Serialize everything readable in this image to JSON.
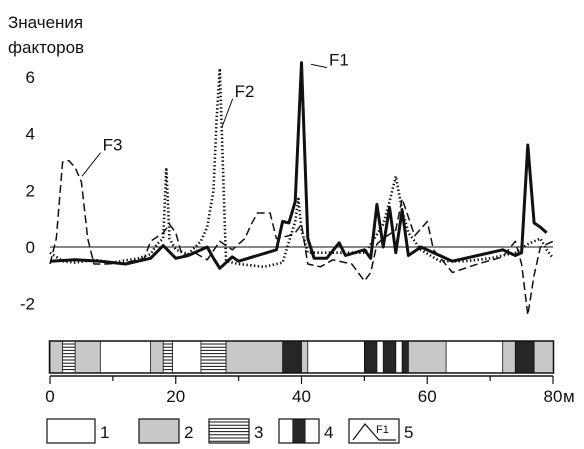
{
  "chart_data": {
    "type": "line",
    "ylabel": [
      "Значения",
      "факторов"
    ],
    "xunit": "м",
    "xlim": [
      0,
      80
    ],
    "ylim": [
      -3,
      6.6
    ],
    "x_ticks": [
      0,
      20,
      40,
      60,
      80
    ],
    "y_ticks": [
      6,
      4,
      2,
      0,
      -2
    ],
    "zero_line": true,
    "series": [
      {
        "name": "F1",
        "style": "solid",
        "points": [
          [
            0,
            -0.5
          ],
          [
            4,
            -0.45
          ],
          [
            8,
            -0.5
          ],
          [
            12,
            -0.6
          ],
          [
            16,
            -0.4
          ],
          [
            18,
            0.05
          ],
          [
            20,
            -0.4
          ],
          [
            22,
            -0.3
          ],
          [
            25,
            0.0
          ],
          [
            26,
            -0.4
          ],
          [
            27,
            -0.75
          ],
          [
            29,
            -0.35
          ],
          [
            30,
            -0.5
          ],
          [
            33,
            -0.3
          ],
          [
            36,
            -0.1
          ],
          [
            37,
            0.9
          ],
          [
            38,
            0.85
          ],
          [
            39,
            1.6
          ],
          [
            40,
            6.5
          ],
          [
            41,
            0.3
          ],
          [
            42,
            -0.4
          ],
          [
            44,
            -0.4
          ],
          [
            46,
            0.15
          ],
          [
            47,
            -0.3
          ],
          [
            50,
            -0.1
          ],
          [
            51,
            -0.4
          ],
          [
            52,
            1.5
          ],
          [
            53,
            0.0
          ],
          [
            54,
            1.4
          ],
          [
            55,
            -0.2
          ],
          [
            56,
            1.3
          ],
          [
            57,
            -0.3
          ],
          [
            59,
            0.0
          ],
          [
            61,
            -0.2
          ],
          [
            64,
            -0.5
          ],
          [
            68,
            -0.3
          ],
          [
            72,
            -0.1
          ],
          [
            74,
            -0.3
          ],
          [
            75,
            -0.2
          ],
          [
            76,
            3.6
          ],
          [
            77,
            0.85
          ],
          [
            78,
            0.7
          ],
          [
            79,
            0.5
          ]
        ]
      },
      {
        "name": "F2",
        "style": "dotted",
        "points": [
          [
            0,
            -0.2
          ],
          [
            2,
            -0.5
          ],
          [
            4,
            -0.55
          ],
          [
            7,
            -0.45
          ],
          [
            10,
            -0.55
          ],
          [
            14,
            -0.4
          ],
          [
            16,
            -0.25
          ],
          [
            17,
            0.1
          ],
          [
            18,
            0.3
          ],
          [
            18.5,
            2.8
          ],
          [
            19,
            0.3
          ],
          [
            20,
            -0.1
          ],
          [
            22,
            -0.25
          ],
          [
            24,
            0.2
          ],
          [
            25,
            0.7
          ],
          [
            26,
            2.0
          ],
          [
            26.5,
            4.5
          ],
          [
            27,
            6.3
          ],
          [
            28,
            -0.5
          ],
          [
            30,
            -0.6
          ],
          [
            34,
            -0.7
          ],
          [
            37,
            -0.55
          ],
          [
            39,
            0.9
          ],
          [
            39.5,
            1.7
          ],
          [
            40,
            0.6
          ],
          [
            41,
            -0.2
          ],
          [
            44,
            -0.2
          ],
          [
            50,
            -0.2
          ],
          [
            51,
            0.1
          ],
          [
            53,
            0.8
          ],
          [
            54,
            1.6
          ],
          [
            55,
            2.5
          ],
          [
            56,
            1.3
          ],
          [
            57,
            0.5
          ],
          [
            59,
            -0.1
          ],
          [
            62,
            -0.5
          ],
          [
            66,
            -0.5
          ],
          [
            70,
            -0.4
          ],
          [
            74,
            -0.2
          ],
          [
            76,
            0.1
          ],
          [
            78,
            0.3
          ],
          [
            79,
            -0.1
          ],
          [
            80,
            -0.4
          ]
        ]
      },
      {
        "name": "F3",
        "style": "dashed",
        "points": [
          [
            0,
            -0.6
          ],
          [
            1,
            0.3
          ],
          [
            2,
            3.0
          ],
          [
            3,
            3.05
          ],
          [
            4,
            2.8
          ],
          [
            5,
            2.3
          ],
          [
            6,
            0.3
          ],
          [
            7,
            -0.6
          ],
          [
            9,
            -0.6
          ],
          [
            12,
            -0.55
          ],
          [
            15,
            -0.4
          ],
          [
            16,
            0.2
          ],
          [
            18,
            0.5
          ],
          [
            19,
            0.8
          ],
          [
            20,
            0.5
          ],
          [
            21,
            -0.3
          ],
          [
            23,
            -0.2
          ],
          [
            25,
            -0.45
          ],
          [
            27,
            0.2
          ],
          [
            29,
            -0.1
          ],
          [
            31,
            0.3
          ],
          [
            32,
            0.8
          ],
          [
            33,
            1.2
          ],
          [
            35,
            1.2
          ],
          [
            36,
            0.3
          ],
          [
            38,
            0.4
          ],
          [
            39,
            0.5
          ],
          [
            40,
            0.8
          ],
          [
            41,
            -0.6
          ],
          [
            43,
            -0.7
          ],
          [
            45,
            -0.45
          ],
          [
            48,
            -0.6
          ],
          [
            50,
            -1.2
          ],
          [
            51,
            -0.9
          ],
          [
            52,
            0.1
          ],
          [
            53,
            0.3
          ],
          [
            55,
            0.6
          ],
          [
            56,
            1.7
          ],
          [
            58,
            0.4
          ],
          [
            60,
            0.9
          ],
          [
            61,
            -0.1
          ],
          [
            64,
            -0.9
          ],
          [
            68,
            -0.6
          ],
          [
            72,
            -0.35
          ],
          [
            74,
            0.2
          ],
          [
            75,
            -0.6
          ],
          [
            76,
            -2.4
          ],
          [
            77,
            -1.0
          ],
          [
            78,
            0.0
          ],
          [
            80,
            0.2
          ]
        ]
      }
    ],
    "labels": [
      {
        "text": "F1",
        "series": "F1",
        "at": [
          41.5,
          6.45
        ],
        "label": [
          45,
          6.4
        ]
      },
      {
        "text": "F2",
        "series": "F2",
        "at": [
          27.3,
          4.2
        ],
        "label": [
          30,
          5.3
        ]
      },
      {
        "text": "F3",
        "series": "F3",
        "at": [
          5.1,
          2.5
        ],
        "label": [
          9,
          3.4
        ]
      }
    ],
    "strip": {
      "segments": [
        {
          "from": 0,
          "to": 2,
          "type": 2
        },
        {
          "from": 2,
          "to": 4,
          "type": 3
        },
        {
          "from": 4,
          "to": 8,
          "type": 2
        },
        {
          "from": 8,
          "to": 16,
          "type": 1
        },
        {
          "from": 16,
          "to": 18,
          "type": 2
        },
        {
          "from": 18,
          "to": 19.5,
          "type": 3
        },
        {
          "from": 19.5,
          "to": 24,
          "type": 1
        },
        {
          "from": 24,
          "to": 28,
          "type": 3
        },
        {
          "from": 28,
          "to": 37,
          "type": 2
        },
        {
          "from": 37,
          "to": 40,
          "type": 4
        },
        {
          "from": 40,
          "to": 41,
          "type": 2
        },
        {
          "from": 41,
          "to": 50,
          "type": 1
        },
        {
          "from": 50,
          "to": 52,
          "type": 4
        },
        {
          "from": 52,
          "to": 53,
          "type": 1
        },
        {
          "from": 53,
          "to": 55,
          "type": 4
        },
        {
          "from": 55,
          "to": 56,
          "type": 1
        },
        {
          "from": 56,
          "to": 57,
          "type": 4
        },
        {
          "from": 57,
          "to": 63,
          "type": 2
        },
        {
          "from": 63,
          "to": 72,
          "type": 1
        },
        {
          "from": 72,
          "to": 74,
          "type": 2
        },
        {
          "from": 74,
          "to": 77,
          "type": 4
        },
        {
          "from": 77,
          "to": 80,
          "type": 2
        }
      ]
    },
    "legend": [
      {
        "type": 1,
        "label": "1"
      },
      {
        "type": 2,
        "label": "2"
      },
      {
        "type": 3,
        "label": "3"
      },
      {
        "type": 4,
        "label": "4"
      },
      {
        "type": 5,
        "label": "5",
        "sample_text": "F1"
      }
    ],
    "colors": {
      "line": "#111111",
      "gray": "#c8c8c8",
      "dark": "#262626",
      "white": "#ffffff"
    }
  }
}
